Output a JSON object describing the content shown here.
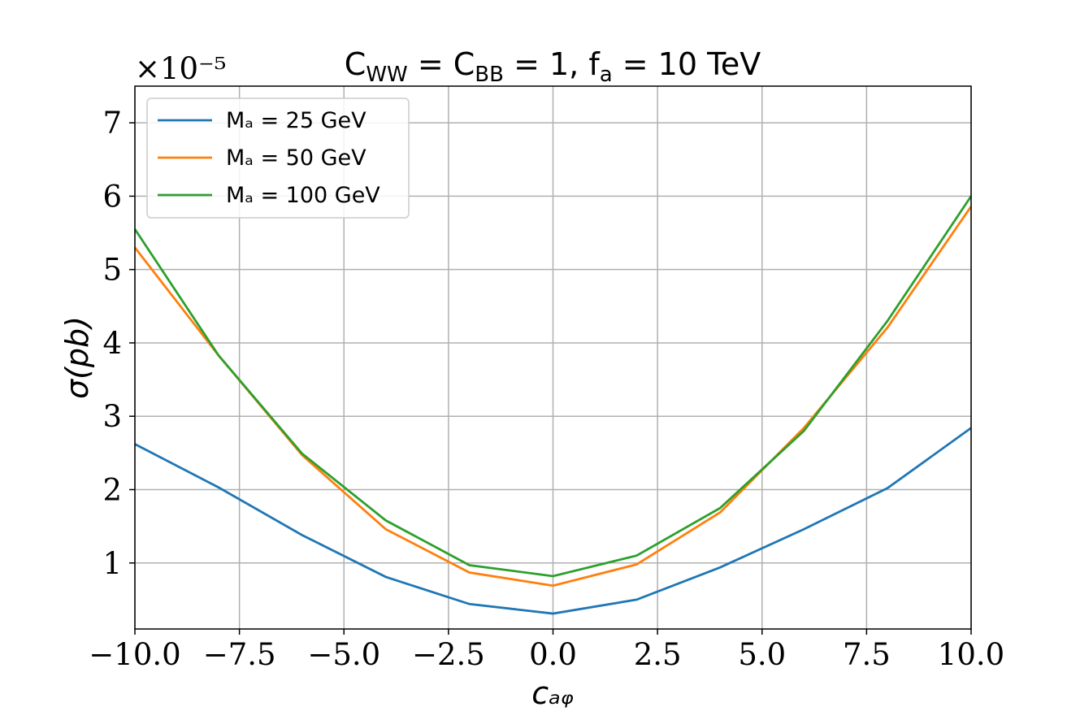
{
  "chart_data": {
    "type": "line",
    "title_parts": [
      "C",
      "WW",
      " = C",
      "BB",
      " = 1,  f",
      "a",
      " = 10 TeV"
    ],
    "x_label": "cₐᵩ",
    "y_label": "σ(pb)",
    "y_offset": "×10⁻⁵",
    "x": [
      -10,
      -8,
      -6,
      -4,
      -2,
      0,
      2,
      4,
      6,
      8,
      10
    ],
    "series": [
      {
        "name": "Mₐ = 25 GeV",
        "color": "#1f77b4",
        "values": [
          2.62,
          2.03,
          1.38,
          0.81,
          0.44,
          0.31,
          0.5,
          0.94,
          1.46,
          2.02,
          2.84
        ]
      },
      {
        "name": "Mₐ = 50 GeV",
        "color": "#ff7f0e",
        "values": [
          5.3,
          3.83,
          2.47,
          1.46,
          0.87,
          0.69,
          0.98,
          1.69,
          2.84,
          4.21,
          5.86
        ]
      },
      {
        "name": "Mₐ = 100 GeV",
        "color": "#2ca02c",
        "values": [
          5.55,
          3.83,
          2.49,
          1.58,
          0.97,
          0.82,
          1.1,
          1.75,
          2.8,
          4.3,
          6.0
        ]
      }
    ],
    "xlim": [
      -10,
      10
    ],
    "ylim": [
      0.1,
      7.5
    ],
    "xticks": [
      {
        "value": -10,
        "label": "−10.0"
      },
      {
        "value": -7.5,
        "label": "−7.5"
      },
      {
        "value": -5,
        "label": "−5.0"
      },
      {
        "value": -2.5,
        "label": "−2.5"
      },
      {
        "value": 0,
        "label": "0.0"
      },
      2.5,
      {
        "value": 5,
        "label": "5.0"
      },
      7.5,
      {
        "value": 10,
        "label": "10.0"
      }
    ],
    "yticks": [
      1,
      2,
      3,
      4,
      5,
      6,
      7
    ],
    "grid": true,
    "legend": "upper left"
  }
}
